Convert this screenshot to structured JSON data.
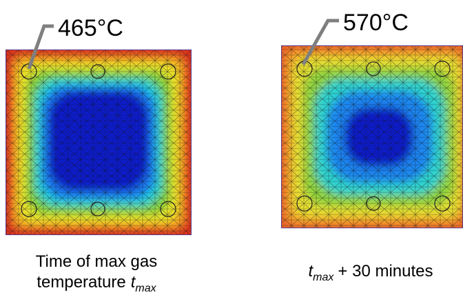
{
  "panels": [
    {
      "label": "465°C",
      "caption": [
        "Time of max gas",
        "temperature",
        "t",
        "max"
      ]
    },
    {
      "label": "570°C",
      "caption": [
        "t",
        "max",
        "+ 30 minutes"
      ]
    }
  ]
}
